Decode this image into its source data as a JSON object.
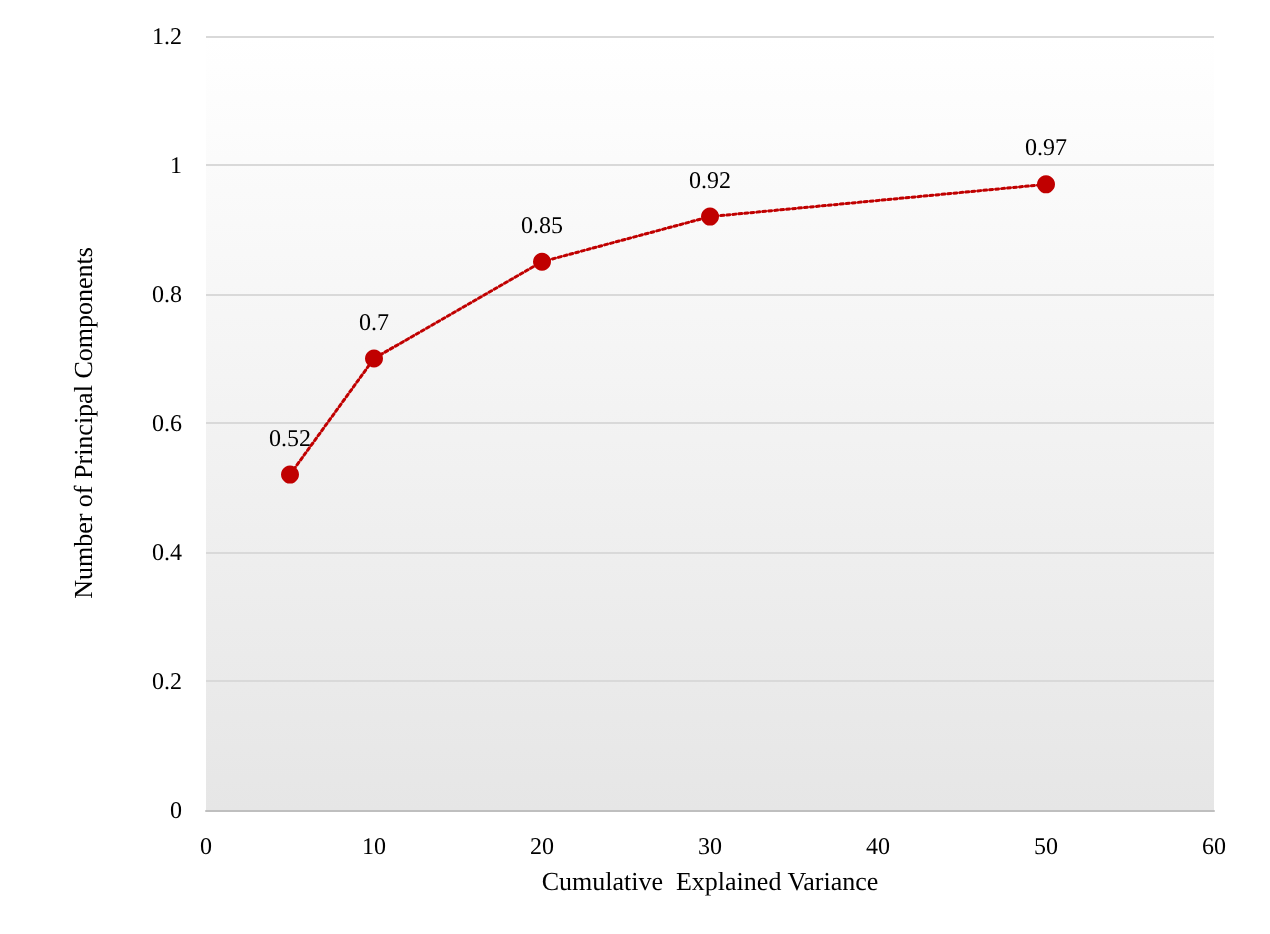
{
  "chart_data": {
    "type": "line",
    "xlabel": "Cumulative  Explained Variance",
    "ylabel": "Number of Principal Components",
    "x": [
      5,
      10,
      20,
      30,
      50
    ],
    "series": [
      {
        "color": "#c00000",
        "values": [
          0.52,
          0.7,
          0.85,
          0.92,
          0.97
        ]
      }
    ],
    "xlim": [
      0,
      60
    ],
    "xticks": [
      0,
      10,
      20,
      30,
      40,
      50,
      60
    ],
    "ylim": [
      0,
      1.2
    ],
    "yticks": [
      0,
      0.2,
      0.4,
      0.6,
      0.8,
      1,
      1.2
    ],
    "grid": "y",
    "marker": "circle",
    "line_style": "dotted",
    "data_labels": true
  }
}
